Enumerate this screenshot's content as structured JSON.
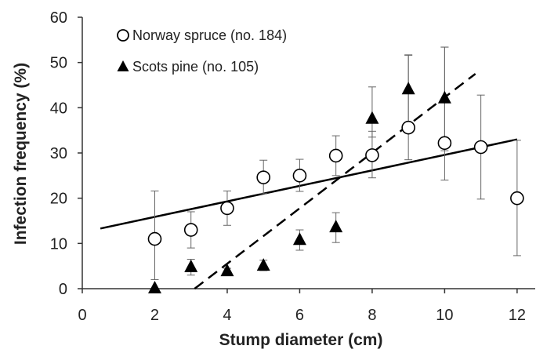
{
  "chart_data": {
    "type": "scatter",
    "xlabel": "Stump diameter (cm)",
    "ylabel": "Infection frequency (%)",
    "xlim": [
      0,
      12.5
    ],
    "ylim": [
      0,
      60
    ],
    "xticks": [
      0,
      2,
      4,
      6,
      8,
      10,
      12
    ],
    "yticks": [
      0,
      10,
      20,
      30,
      40,
      50,
      60
    ],
    "grid": false,
    "legend_position": "top-left",
    "series": [
      {
        "name": "Norway spruce (no. 184)",
        "marker": "open-circle",
        "line_style": "solid",
        "color": "#000000",
        "x": [
          2,
          3,
          4,
          5,
          6,
          7,
          8,
          9,
          10,
          11,
          12
        ],
        "y": [
          11,
          13,
          17.8,
          24.6,
          25,
          29.4,
          29.5,
          35.6,
          32.2,
          31.3,
          20
        ],
        "error_low": [
          2,
          9,
          14,
          21,
          21.5,
          25,
          24.5,
          28.5,
          24,
          19.8,
          7.3
        ],
        "error_high": [
          21.6,
          17,
          21.6,
          28.4,
          28.6,
          33.8,
          34.8,
          51.6,
          53.4,
          42.8,
          32.8
        ],
        "trend_x": [
          0.5,
          12
        ],
        "trend_y": [
          13.3,
          33
        ]
      },
      {
        "name": "Scots pine (no. 105)",
        "marker": "filled-triangle",
        "line_style": "dashed",
        "color": "#000000",
        "x": [
          2,
          3,
          4,
          5,
          6,
          7,
          8,
          9,
          10
        ],
        "y": [
          0,
          4.7,
          3.8,
          5,
          10.7,
          13.5,
          37.5,
          44,
          42
        ],
        "error_low": [
          null,
          3,
          3,
          4,
          8.5,
          10.2,
          33.5,
          35,
          30.5
        ],
        "error_high": [
          null,
          6.5,
          4.5,
          6.3,
          13,
          16.8,
          44.6,
          51.7,
          53.4
        ],
        "trend_x": [
          3.1,
          10.85
        ],
        "trend_y": [
          0,
          47.5
        ]
      }
    ]
  }
}
